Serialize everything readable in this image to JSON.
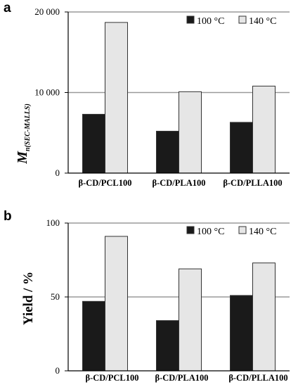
{
  "chart_data": [
    {
      "type": "bar",
      "panel": "a",
      "ylabel_main": "M",
      "ylabel_sub": "n(SEC-MALLS)",
      "categories": [
        "β-CD/PCL100",
        "β-CD/PLA100",
        "β-CD/PLLA100"
      ],
      "series": [
        {
          "name": "100 °C",
          "color": "#1a1a1a",
          "values": [
            7300,
            5200,
            6300
          ]
        },
        {
          "name": "140 °C",
          "color": "#e6e6e6",
          "values": [
            18700,
            10100,
            10800
          ]
        }
      ],
      "ylim": [
        0,
        20000
      ],
      "yticks": [
        0,
        10000,
        20000
      ],
      "ytick_labels": [
        "0",
        "10 000",
        "20 000"
      ],
      "grid": true,
      "legend": "top-right"
    },
    {
      "type": "bar",
      "panel": "b",
      "ylabel": "Yield / %",
      "categories": [
        "β-CD/PCL100",
        "β-CD/PLA100",
        "β-CD/PLLA100"
      ],
      "series": [
        {
          "name": "100 °C",
          "color": "#1a1a1a",
          "values": [
            47,
            34,
            51
          ]
        },
        {
          "name": "140 °C",
          "color": "#e6e6e6",
          "values": [
            91,
            69,
            73
          ]
        }
      ],
      "ylim": [
        0,
        100
      ],
      "yticks": [
        0,
        50,
        100
      ],
      "ytick_labels": [
        "0",
        "50",
        "100"
      ],
      "grid": true,
      "legend": "top-right"
    }
  ]
}
